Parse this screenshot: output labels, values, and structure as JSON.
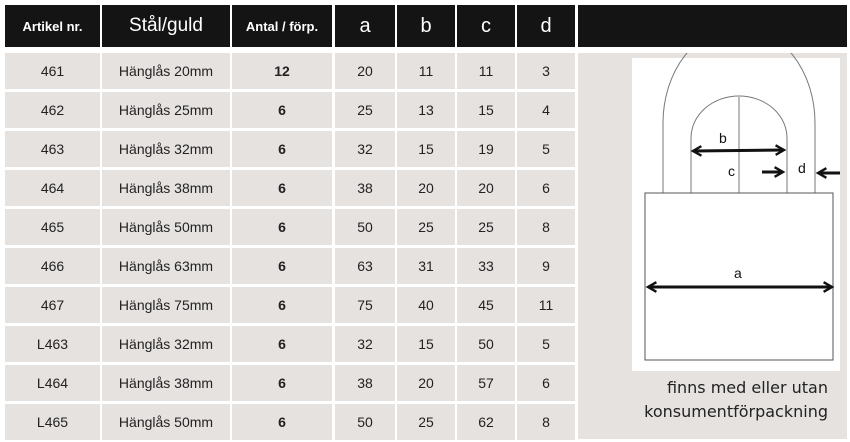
{
  "headers": [
    "Artikel nr.",
    "Stål/guld",
    "Antal / förp.",
    "a",
    "b",
    "c",
    "d"
  ],
  "rows": [
    [
      "461",
      "Hänglås  20mm",
      "12",
      "20",
      "11",
      "11",
      "3"
    ],
    [
      "462",
      "Hänglås  25mm",
      "6",
      "25",
      "13",
      "15",
      "4"
    ],
    [
      "463",
      "Hänglås  32mm",
      "6",
      "32",
      "15",
      "19",
      "5"
    ],
    [
      "464",
      "Hänglås  38mm",
      "6",
      "38",
      "20",
      "20",
      "6"
    ],
    [
      "465",
      "Hänglås  50mm",
      "6",
      "50",
      "25",
      "25",
      "8"
    ],
    [
      "466",
      "Hänglås  63mm",
      "6",
      "63",
      "31",
      "33",
      "9"
    ],
    [
      "467",
      "Hänglås  75mm",
      "6",
      "75",
      "40",
      "45",
      "11"
    ],
    [
      "L463",
      "Hänglås  32mm",
      "6",
      "32",
      "15",
      "50",
      "5"
    ],
    [
      "L464",
      "Hänglås  38mm",
      "6",
      "38",
      "20",
      "57",
      "6"
    ],
    [
      "L465",
      "Hänglås  50mm",
      "6",
      "50",
      "25",
      "62",
      "8"
    ]
  ],
  "diagram": {
    "labels": {
      "a": "a",
      "b": "b",
      "c": "c",
      "d": "d"
    }
  },
  "note": {
    "line1": "finns med eller utan",
    "line2": "konsumentförpackning"
  }
}
